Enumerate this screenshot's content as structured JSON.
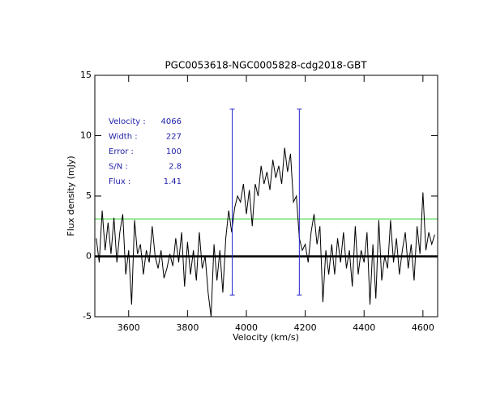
{
  "chart_data": {
    "type": "line",
    "title": "PGC0053618-NGC0005828-cdg2018-GBT",
    "x_label": "Velocity (km/s)",
    "y_label": "Flux density (mJy)",
    "xlim": [
      3485,
      4650
    ],
    "ylim": [
      -5,
      15
    ],
    "xticks": [
      3600,
      3800,
      4000,
      4200,
      4400,
      4600
    ],
    "yticks": [
      -5,
      0,
      5,
      10,
      15
    ],
    "x": [
      3490,
      3500,
      3510,
      3520,
      3530,
      3540,
      3550,
      3560,
      3570,
      3580,
      3590,
      3600,
      3610,
      3620,
      3630,
      3640,
      3650,
      3660,
      3670,
      3680,
      3690,
      3700,
      3710,
      3720,
      3730,
      3740,
      3750,
      3760,
      3770,
      3780,
      3790,
      3800,
      3810,
      3820,
      3830,
      3840,
      3850,
      3860,
      3870,
      3880,
      3890,
      3900,
      3910,
      3920,
      3930,
      3940,
      3950,
      3960,
      3970,
      3980,
      3990,
      4000,
      4010,
      4020,
      4030,
      4040,
      4050,
      4060,
      4070,
      4080,
      4090,
      4100,
      4110,
      4120,
      4130,
      4140,
      4150,
      4160,
      4170,
      4180,
      4190,
      4200,
      4210,
      4220,
      4230,
      4240,
      4250,
      4260,
      4270,
      4280,
      4290,
      4300,
      4310,
      4320,
      4330,
      4340,
      4350,
      4360,
      4370,
      4380,
      4390,
      4400,
      4410,
      4420,
      4430,
      4440,
      4450,
      4460,
      4470,
      4480,
      4490,
      4500,
      4510,
      4520,
      4530,
      4540,
      4550,
      4560,
      4570,
      4580,
      4590,
      4600,
      4610,
      4620,
      4630,
      4640
    ],
    "series": [
      {
        "name": "spectrum",
        "color": "#000000",
        "values": [
          1.5,
          -0.5,
          3.8,
          0.5,
          2.8,
          0.2,
          3.2,
          -0.5,
          2.0,
          3.5,
          -1.5,
          0.5,
          -4.0,
          3.0,
          0.2,
          1.0,
          -1.5,
          0.5,
          -0.5,
          2.5,
          0.0,
          -1.0,
          0.5,
          -1.8,
          -1.0,
          0.2,
          -0.8,
          1.5,
          -0.5,
          2.0,
          -2.5,
          1.2,
          -1.5,
          0.5,
          -2.0,
          2.0,
          -1.0,
          0.0,
          -3.0,
          -5.0,
          1.0,
          -2.0,
          0.5,
          -3.0,
          1.5,
          3.8,
          2.0,
          4.0,
          5.0,
          4.5,
          6.0,
          3.5,
          5.5,
          2.5,
          6.0,
          5.0,
          7.5,
          6.0,
          7.0,
          5.5,
          8.0,
          6.5,
          7.5,
          6.0,
          9.0,
          7.0,
          8.5,
          4.5,
          5.0,
          1.5,
          0.5,
          1.0,
          -0.5,
          2.0,
          3.5,
          1.0,
          2.5,
          -3.8,
          0.5,
          -1.5,
          1.0,
          -1.5,
          1.5,
          -0.5,
          2.0,
          -1.0,
          0.5,
          -2.5,
          2.5,
          -1.5,
          0.5,
          -0.5,
          2.0,
          -4.0,
          1.0,
          -3.5,
          3.0,
          -2.0,
          0.0,
          -1.0,
          3.0,
          -0.5,
          1.5,
          -1.5,
          0.5,
          2.0,
          -1.0,
          1.0,
          -2.0,
          2.5,
          0.2,
          5.3,
          0.5,
          2.0,
          1.0,
          1.8
        ]
      }
    ],
    "hlines": [
      {
        "value": 0,
        "color": "#000000"
      },
      {
        "value": 3.1,
        "color": "#22cc22"
      }
    ],
    "vlines": [
      {
        "x": 3952,
        "ymin": -3.2,
        "ymax": 12.2,
        "color": "#2222cc"
      },
      {
        "x": 4180,
        "ymin": -3.2,
        "ymax": 12.2,
        "color": "#2222cc"
      }
    ],
    "annotations": [
      {
        "label": "Velocity :",
        "value": 4066
      },
      {
        "label": "Width :",
        "value": 227
      },
      {
        "label": "Error :",
        "value": 100
      },
      {
        "label": "S/N :",
        "value": 2.8
      },
      {
        "label": "Flux :",
        "value": 1.41
      }
    ],
    "annotation_color": "#2222aa"
  }
}
